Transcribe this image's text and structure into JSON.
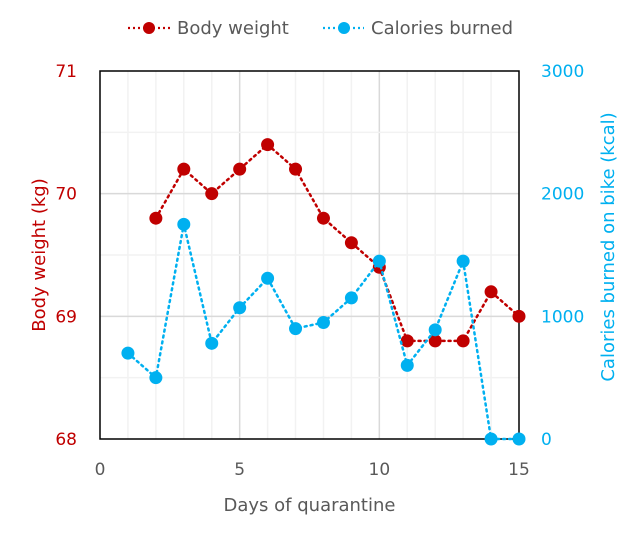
{
  "chart_data": {
    "type": "line",
    "title": "",
    "xlabel": "Days of  quarantine",
    "ylabel": "Body weight (kg)",
    "y2label": "Calories burned on bike (kcal)",
    "xlim": [
      0,
      15
    ],
    "ylim": [
      68,
      71
    ],
    "y2lim": [
      0,
      3000
    ],
    "x_ticks": [
      "0",
      "5",
      "10",
      "15"
    ],
    "x_tick_values": [
      0,
      5,
      10,
      15
    ],
    "y_ticks": [
      "68",
      "69",
      "70",
      "71"
    ],
    "y_tick_values": [
      68,
      69,
      70,
      71
    ],
    "y2_ticks": [
      "0",
      "1000",
      "2000",
      "3000"
    ],
    "y2_tick_values": [
      0,
      1000,
      2000,
      3000
    ],
    "grid": true,
    "legend_position": "top-center",
    "series": [
      {
        "name": "Body weight",
        "axis": "left",
        "color": "#C00000",
        "line_style": "dotted",
        "marker": "circle",
        "x": [
          2,
          3,
          4,
          5,
          6,
          7,
          8,
          9,
          10,
          11,
          12,
          13,
          14,
          15
        ],
        "values": [
          69.8,
          70.2,
          70.0,
          70.2,
          70.4,
          70.2,
          69.8,
          69.6,
          69.4,
          68.8,
          68.8,
          68.8,
          69.2,
          69.0
        ]
      },
      {
        "name": "Calories burned",
        "axis": "right",
        "color": "#00B0F0",
        "line_style": "dotted",
        "marker": "circle",
        "x": [
          1,
          2,
          3,
          4,
          5,
          6,
          7,
          8,
          9,
          10,
          11,
          12,
          13,
          14,
          15
        ],
        "values": [
          700,
          500,
          1750,
          780,
          1070,
          1310,
          900,
          950,
          1150,
          1450,
          600,
          890,
          1450,
          0,
          0
        ]
      }
    ]
  },
  "colors": {
    "text": "#595959",
    "grid_minor": "#F2F2F2",
    "grid_major": "#D9D9D9",
    "frame": "#000000"
  }
}
